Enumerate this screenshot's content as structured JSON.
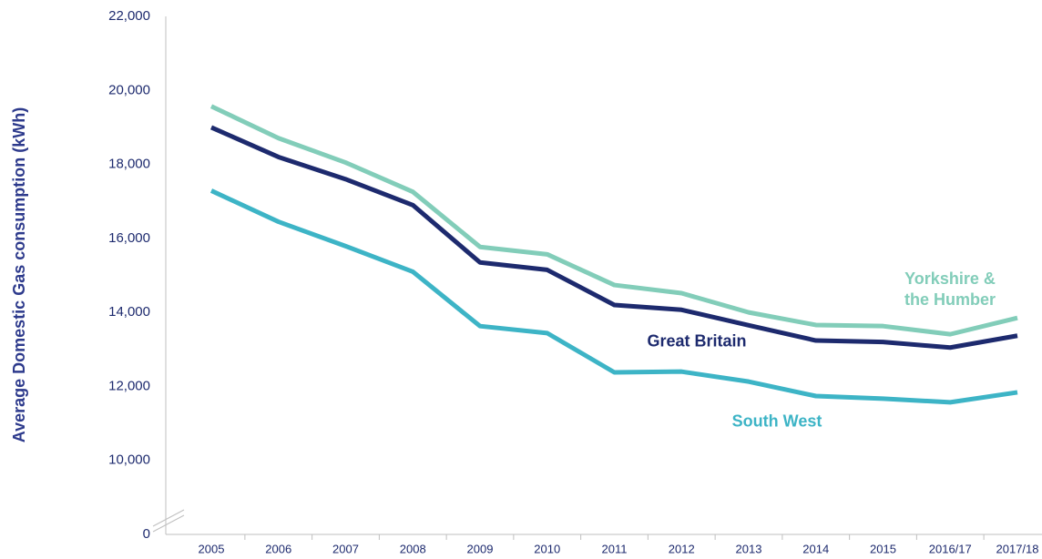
{
  "chart_data": {
    "type": "line",
    "y_label": "Average Domestic Gas consumption (kWh)",
    "categories": [
      "2005",
      "2006",
      "2007",
      "2008",
      "2009",
      "2010",
      "2011",
      "2012",
      "2013",
      "2014",
      "2015",
      "2016/17",
      "2017/18"
    ],
    "series": [
      {
        "name": "Yorkshire & the Humber",
        "color": "#82cdb9",
        "values": [
          19570,
          18710,
          18050,
          17260,
          15770,
          15570,
          14740,
          14520,
          14000,
          13660,
          13630,
          13410,
          13850
        ]
      },
      {
        "name": "Great Britain",
        "color": "#1d2a6e",
        "values": [
          19000,
          18200,
          17600,
          16900,
          15350,
          15150,
          14200,
          14070,
          13650,
          13240,
          13200,
          13050,
          13370
        ]
      },
      {
        "name": "South West",
        "color": "#3db4c6",
        "values": [
          17290,
          16450,
          15790,
          15100,
          13630,
          13440,
          12380,
          12400,
          12130,
          11740,
          11670,
          11570,
          11840
        ]
      }
    ],
    "ylim": [
      0,
      22000
    ],
    "y_break": [
      0,
      10000
    ],
    "yticks": [
      {
        "value": 0,
        "label": "0"
      },
      {
        "value": 10000,
        "label": "10,000"
      },
      {
        "value": 12000,
        "label": "12,000"
      },
      {
        "value": 14000,
        "label": "14,000"
      },
      {
        "value": 16000,
        "label": "16,000"
      },
      {
        "value": 18000,
        "label": "18,000"
      },
      {
        "value": 20000,
        "label": "20,000"
      },
      {
        "value": 22000,
        "label": "22,000"
      }
    ],
    "grid": false
  }
}
